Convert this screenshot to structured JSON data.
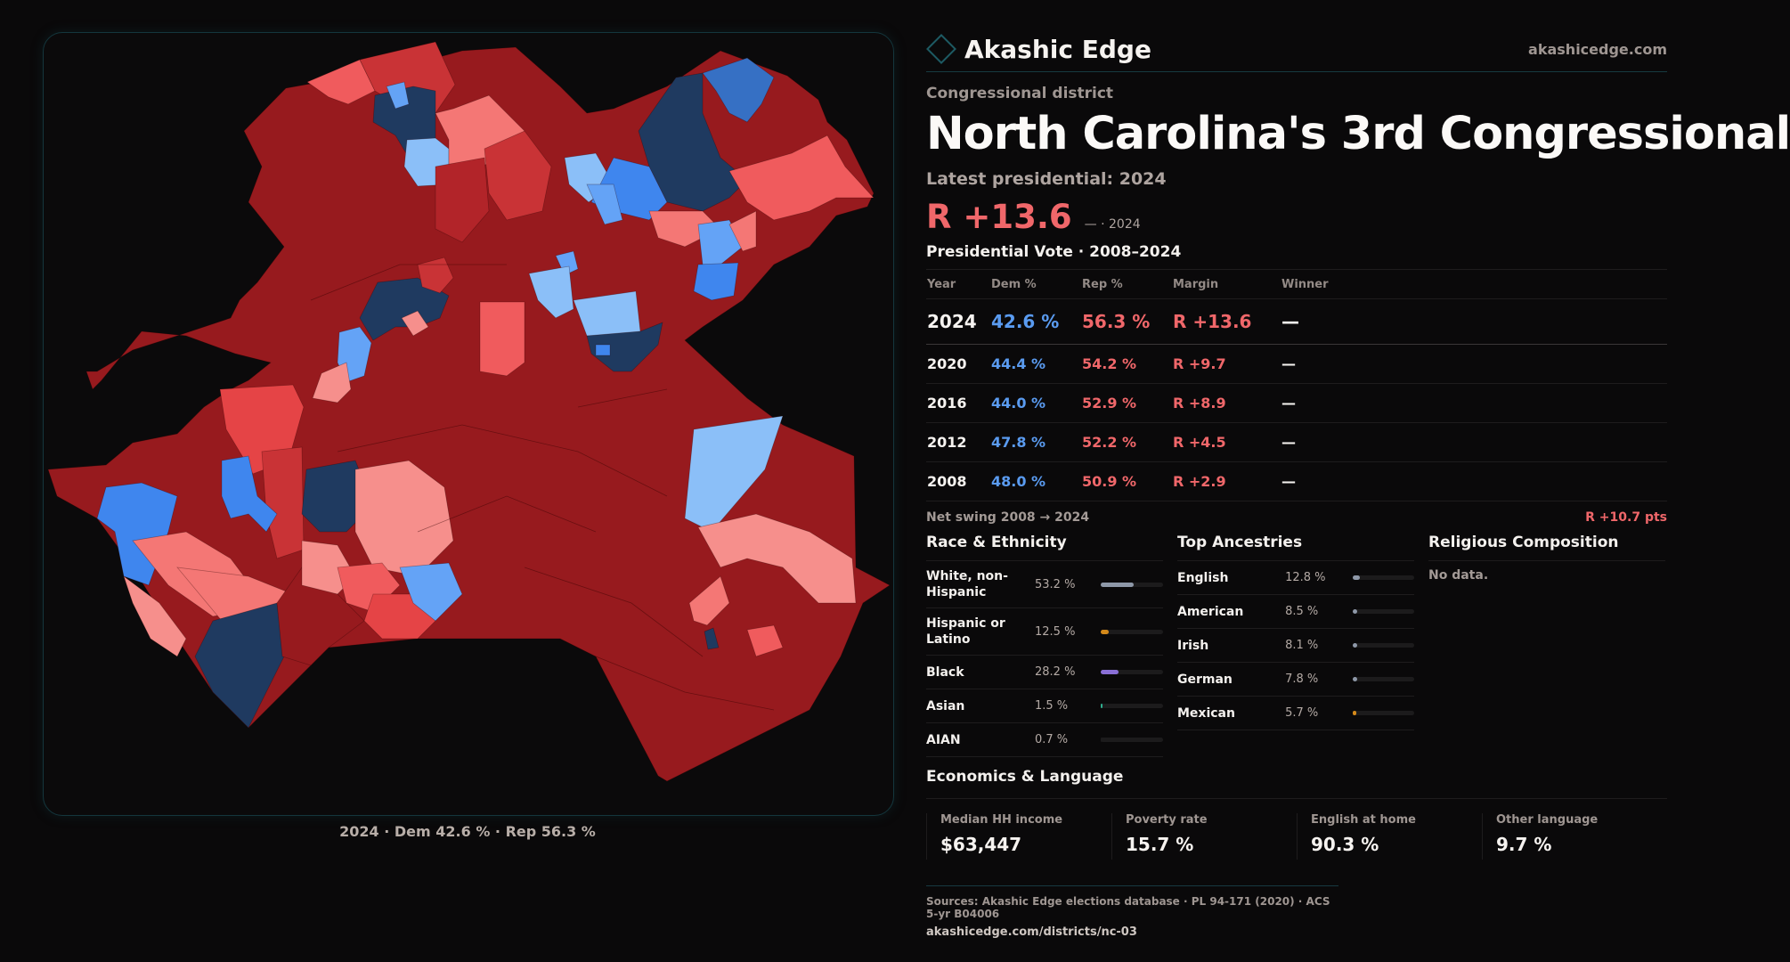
{
  "brand": {
    "name": "Akashic Edge",
    "site": "akashicedge.com",
    "logo_icon": "diamond-outline-icon"
  },
  "district": {
    "eyebrow": "Congressional district",
    "title": "North Carolina's 3rd Congressional",
    "latest_label": "Latest presidential: 2024",
    "margin_headline": "R +13.6",
    "margin_note": "— · 2024"
  },
  "votes": {
    "title": "Presidential Vote · 2008–2024",
    "headers": [
      "Year",
      "Dem %",
      "Rep %",
      "Margin",
      "Winner"
    ],
    "rows": [
      {
        "year": "2024",
        "dem": "42.6 %",
        "rep": "56.3 %",
        "margin": "R +13.6",
        "winner": "—"
      },
      {
        "year": "2020",
        "dem": "44.4 %",
        "rep": "54.2 %",
        "margin": "R +9.7",
        "winner": "—"
      },
      {
        "year": "2016",
        "dem": "44.0 %",
        "rep": "52.9 %",
        "margin": "R +8.9",
        "winner": "—"
      },
      {
        "year": "2012",
        "dem": "47.8 %",
        "rep": "52.2 %",
        "margin": "R +4.5",
        "winner": "—"
      },
      {
        "year": "2008",
        "dem": "48.0 %",
        "rep": "50.9 %",
        "margin": "R +2.9",
        "winner": "—"
      }
    ],
    "swing_label": "Net swing 2008 → 2024",
    "swing_value": "R +10.7 pts"
  },
  "race": {
    "title": "Race & Ethnicity",
    "items": [
      {
        "label": "White, non-Hispanic",
        "value": "53.2 %",
        "pct": 53.2,
        "color": "#8e98a8"
      },
      {
        "label": "Hispanic or Latino",
        "value": "12.5 %",
        "pct": 12.5,
        "color": "#d4891a"
      },
      {
        "label": "Black",
        "value": "28.2 %",
        "pct": 28.2,
        "color": "#8a6fd6"
      },
      {
        "label": "Asian",
        "value": "1.5 %",
        "pct": 1.5,
        "color": "#2fae8e"
      },
      {
        "label": "AIAN",
        "value": "0.7 %",
        "pct": 0.7,
        "color": "#1c1b1c"
      }
    ]
  },
  "ancestry": {
    "title": "Top Ancestries",
    "items": [
      {
        "label": "English",
        "value": "12.8 %",
        "pct": 12.8,
        "color": "#8e98a8"
      },
      {
        "label": "American",
        "value": "8.5 %",
        "pct": 8.5,
        "color": "#8e98a8"
      },
      {
        "label": "Irish",
        "value": "8.1 %",
        "pct": 8.1,
        "color": "#8e98a8"
      },
      {
        "label": "German",
        "value": "7.8 %",
        "pct": 7.8,
        "color": "#8e98a8"
      },
      {
        "label": "Mexican",
        "value": "5.7 %",
        "pct": 5.7,
        "color": "#d4891a"
      }
    ]
  },
  "religion": {
    "title": "Religious Composition",
    "empty": "No data."
  },
  "economics": {
    "title": "Economics & Language",
    "items": [
      {
        "label": "Median HH income",
        "value": "$63,447"
      },
      {
        "label": "Poverty rate",
        "value": "15.7 %"
      },
      {
        "label": "English at home",
        "value": "90.3 %"
      },
      {
        "label": "Other language",
        "value": "9.7 %"
      }
    ]
  },
  "map": {
    "caption": "2024 · Dem 42.6 % · Rep 56.3 %",
    "palette": {
      "r_safe": "#971a1e",
      "r_likely": "#b22429",
      "r_lean": "#c93336",
      "r_tilt": "#e54446",
      "r_soft": "#f05b5d",
      "r_light": "#f47775",
      "r_pale": "#f68f8c",
      "d_pale": "#8bbff8",
      "d_light": "#64a3f6",
      "d_mid": "#3f86ee",
      "d_strong": "#3670c4",
      "d_safe": "#1f3a60"
    }
  },
  "footer": {
    "sources": "Sources: Akashic Edge elections database · PL 94-171 (2020) · ACS 5-yr B04006",
    "url": "akashicedge.com/districts/nc-03"
  }
}
